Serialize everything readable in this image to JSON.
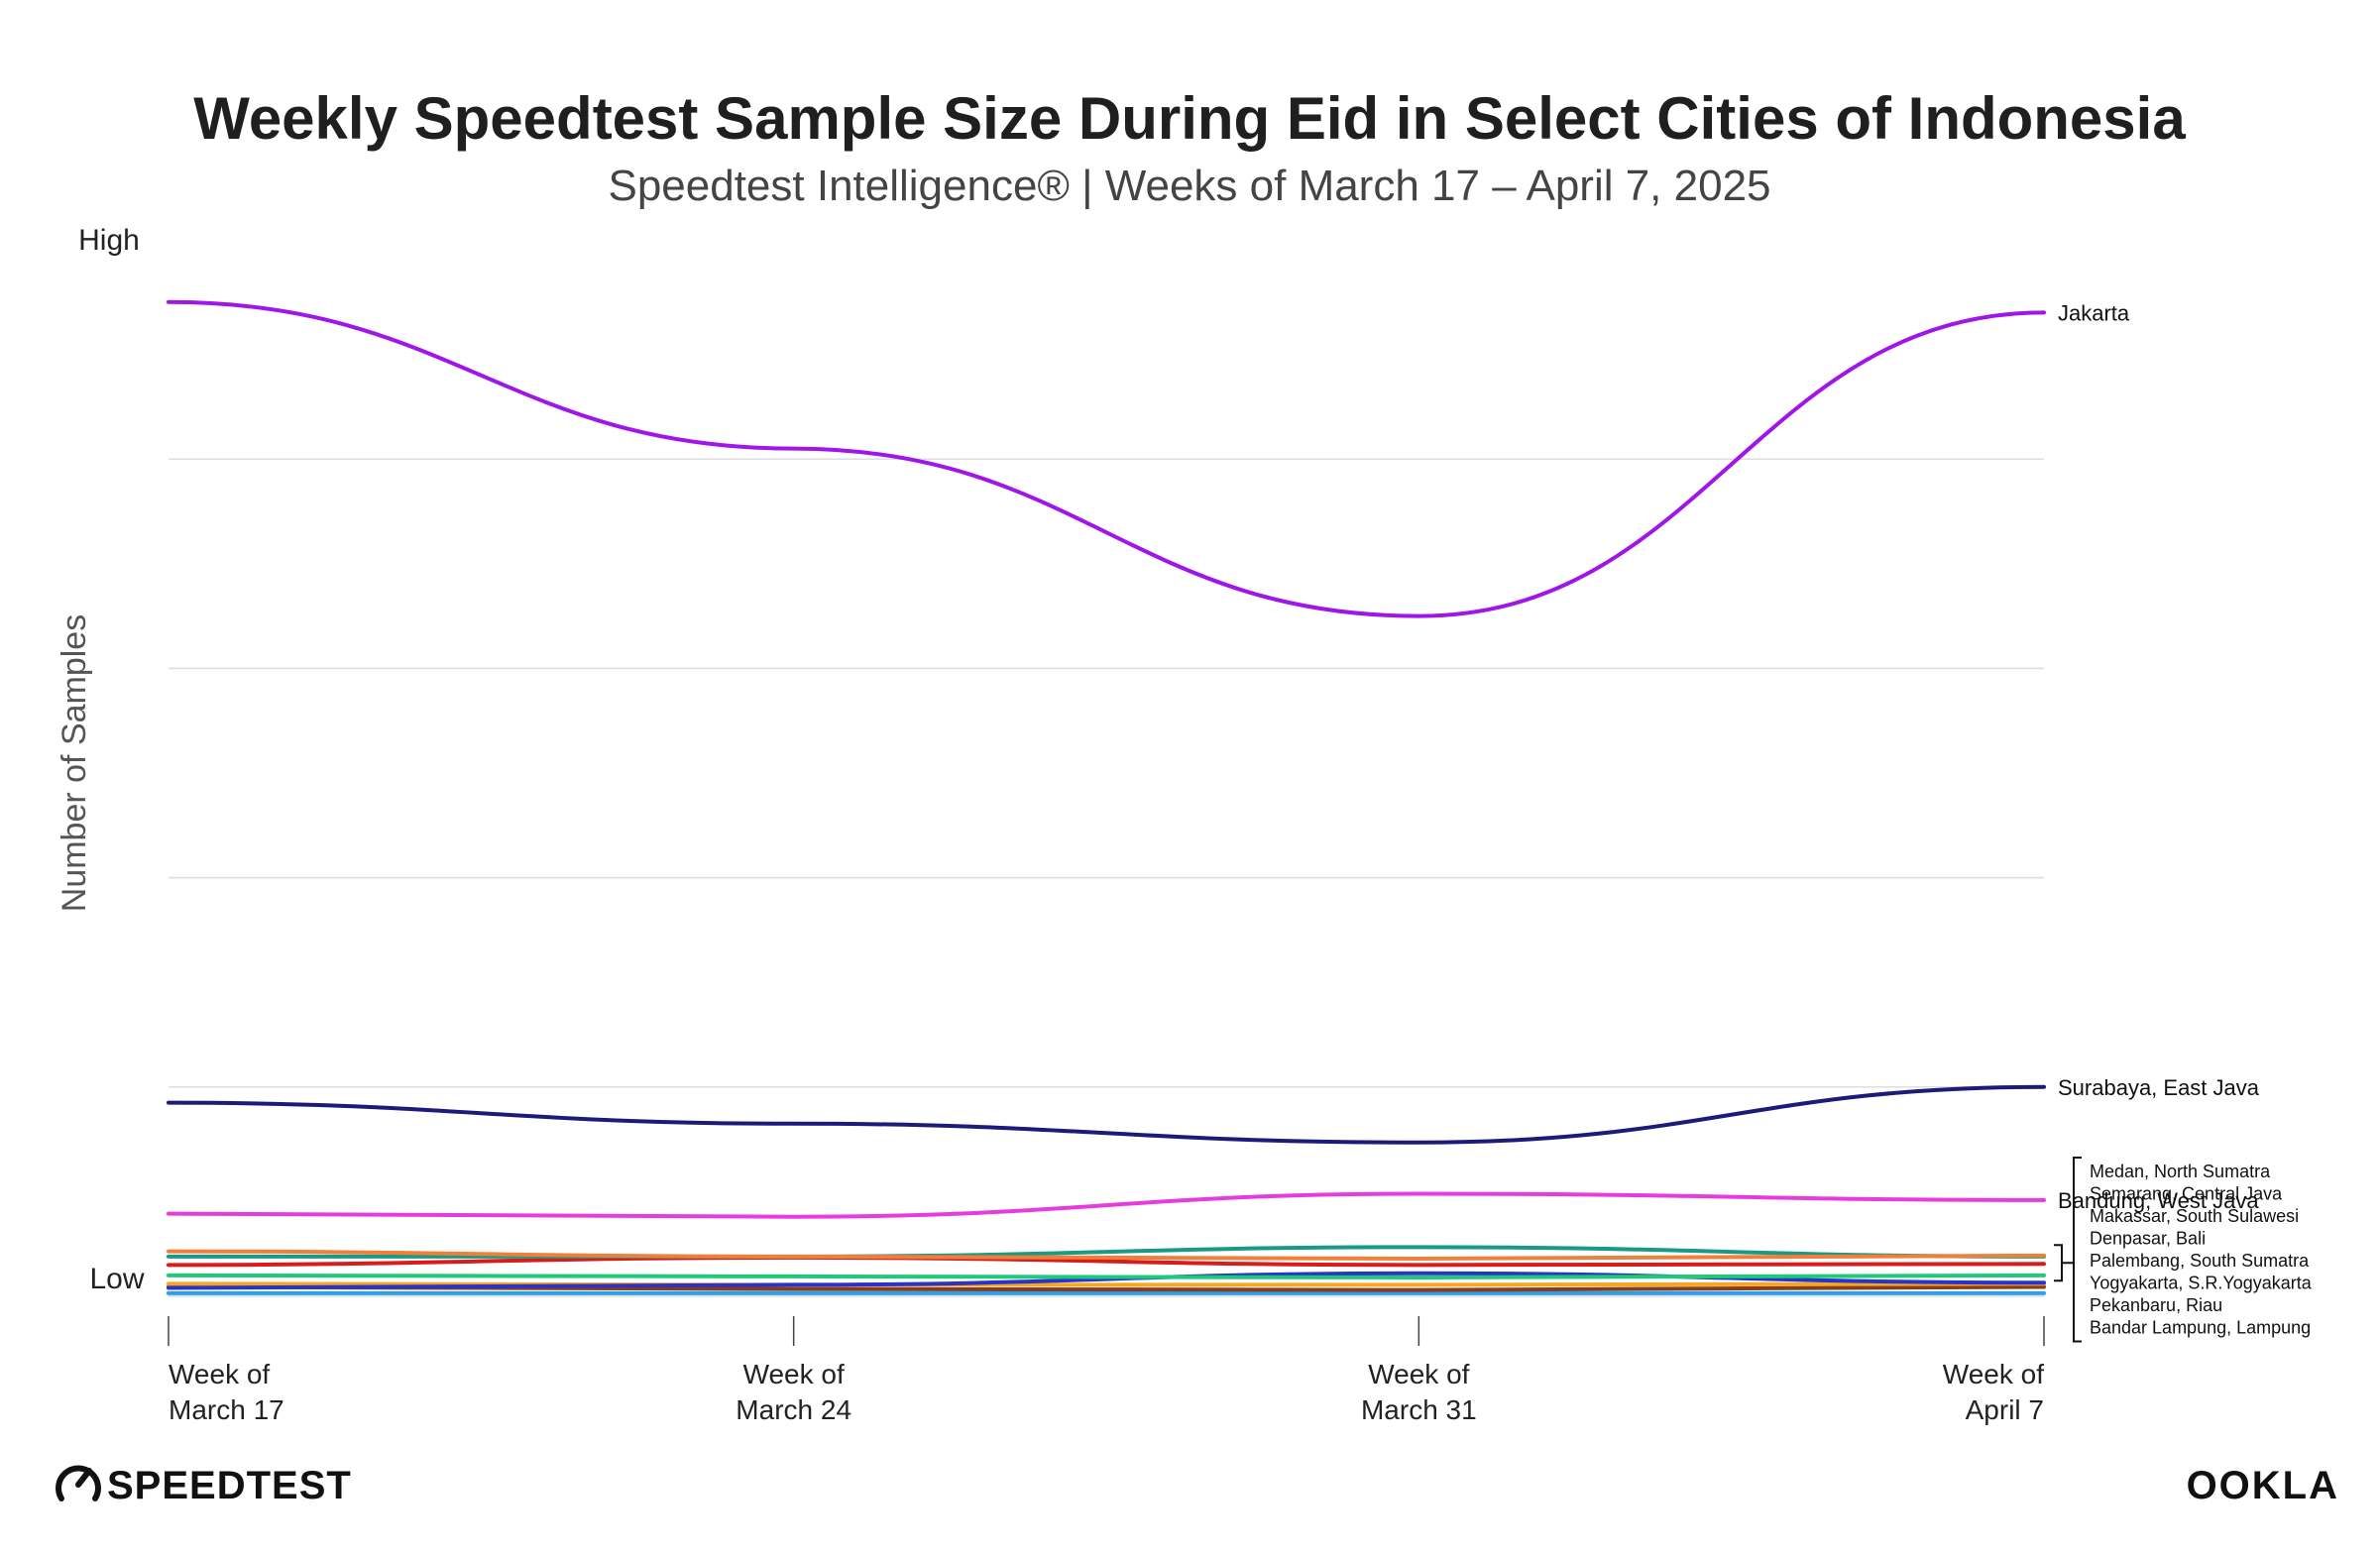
{
  "chart_data": {
    "type": "line",
    "title": "Weekly Speedtest Sample Size During Eid in Select Cities of Indonesia",
    "subtitle": "Speedtest Intelligence® | Weeks of March 17 – April 7, 2025",
    "ylabel": "Number of Samples",
    "y_tick_labels": {
      "high": "High",
      "low": "Low"
    },
    "ylim": [
      0,
      100
    ],
    "grid": true,
    "x": [
      {
        "line1": "Week of",
        "line2": "March 17"
      },
      {
        "line1": "Week of",
        "line2": "March 24"
      },
      {
        "line1": "Week of",
        "line2": "March 31"
      },
      {
        "line1": "Week of",
        "line2": "April 7"
      }
    ],
    "series": [
      {
        "name": "Jakarta",
        "color": "#a016e8",
        "values": [
          95,
          81,
          65,
          94
        ],
        "labeled": true
      },
      {
        "name": "Surabaya, East Java",
        "color": "#1c1a7a",
        "values": [
          18.5,
          16.5,
          14.7,
          20.0
        ],
        "labeled": true
      },
      {
        "name": "Bandung, West Java",
        "color": "#e63be0",
        "values": [
          7.9,
          7.6,
          9.8,
          9.2
        ],
        "labeled": true
      },
      {
        "name": "Medan, North Sumatra",
        "color": "#f07f3a",
        "values": [
          4.3,
          3.8,
          3.6,
          3.9
        ],
        "labeled": false
      },
      {
        "name": "Semarang, Central Java",
        "color": "#1a9a86",
        "values": [
          3.8,
          3.8,
          4.7,
          3.8
        ],
        "labeled": false
      },
      {
        "name": "Makassar, South Sulawesi",
        "color": "#d81c1c",
        "values": [
          3.0,
          3.7,
          3.0,
          3.1
        ],
        "labeled": false
      },
      {
        "name": "Denpasar, Bali",
        "color": "#1ec97a",
        "values": [
          2.0,
          1.9,
          1.8,
          2.0
        ],
        "labeled": false
      },
      {
        "name": "Palembang, South Sumatra",
        "color": "#2a33c9",
        "values": [
          0.8,
          1.1,
          2.2,
          1.3
        ],
        "labeled": false
      },
      {
        "name": "Yogyakarta, S.R.Yogyakarta",
        "color": "#f5a623",
        "values": [
          1.2,
          1.1,
          1.1,
          1.2
        ],
        "labeled": false
      },
      {
        "name": "Pekanbaru, Riau",
        "color": "#8a3b1a",
        "values": [
          0.9,
          0.7,
          0.6,
          0.9
        ],
        "labeled": false
      },
      {
        "name": "Bandar Lampung, Lampung",
        "color": "#2aa0f0",
        "values": [
          0.3,
          0.3,
          0.3,
          0.3
        ],
        "labeled": false
      }
    ],
    "group_labels": [
      "Medan, North Sumatra",
      "Semarang, Central Java",
      "Makassar, South Sulawesi",
      "Denpasar, Bali",
      "Palembang, South Sumatra",
      "Yogyakarta, S.R.Yogyakarta",
      "Pekanbaru, Riau",
      "Bandar Lampung, Lampung"
    ]
  },
  "footer": {
    "left_brand": "SPEEDTEST",
    "right_brand": "OOKLA"
  }
}
